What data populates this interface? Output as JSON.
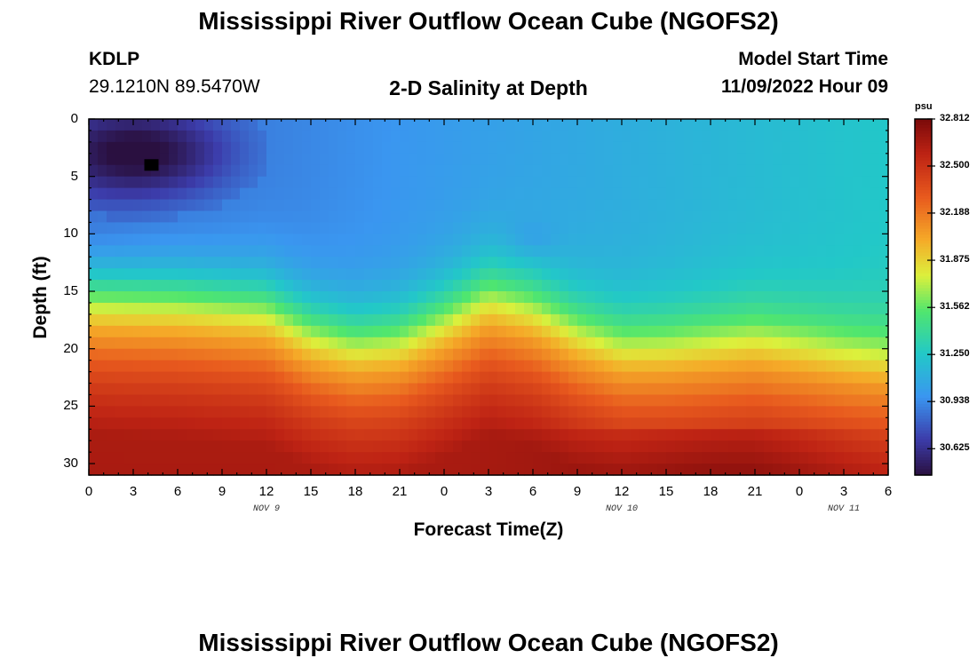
{
  "header": {
    "title": "Mississippi River Outflow Ocean Cube (NGOFS2)",
    "station_id": "KDLP",
    "station_coords": "29.1210N  89.5470W",
    "subtitle": "2-D Salinity at Depth",
    "model_start_label": "Model Start Time",
    "model_start_value": "11/09/2022 Hour 09"
  },
  "footer": {
    "title_repeat": "Mississippi River Outflow Ocean Cube (NGOFS2)"
  },
  "colors": {
    "low": "#2a1040",
    "mid_blue": "#3a9cf0",
    "cyan": "#22d2c0",
    "yellow": "#e8f040",
    "orange": "#f07830",
    "high": "#7a0a0a"
  },
  "chart_data": {
    "type": "heatmap",
    "xlabel": "Forecast Time(Z)",
    "ylabel": "Depth (ft)",
    "x_tick_labels": [
      "0",
      "3",
      "6",
      "9",
      "12",
      "15",
      "18",
      "21",
      "0",
      "3",
      "6",
      "9",
      "12",
      "15",
      "18",
      "21",
      "0",
      "3",
      "6"
    ],
    "x_range": [
      0,
      54
    ],
    "y_ticks": [
      0,
      5,
      10,
      15,
      20,
      25,
      30
    ],
    "y_range": [
      0,
      31
    ],
    "y_inverted": true,
    "date_labels": [
      {
        "label": "NOV 9",
        "x": 12
      },
      {
        "label": "NOV 10",
        "x": 36
      },
      {
        "label": "NOV 11",
        "x": 51
      }
    ],
    "colorbar": {
      "unit": "psu",
      "min": 30.45,
      "max": 32.812,
      "tick_labels": [
        "32.812",
        "32.500",
        "32.188",
        "31.875",
        "31.562",
        "31.250",
        "30.938",
        "30.625"
      ],
      "tick_values": [
        32.812,
        32.5,
        32.188,
        31.875,
        31.562,
        31.25,
        30.938,
        30.625
      ]
    },
    "halocline_depth_ft": [
      {
        "x": 0,
        "depth": 15.5
      },
      {
        "x": 6,
        "depth": 15.8
      },
      {
        "x": 12,
        "depth": 16.5
      },
      {
        "x": 15,
        "depth": 18.5
      },
      {
        "x": 18,
        "depth": 19.5
      },
      {
        "x": 21,
        "depth": 19.2
      },
      {
        "x": 24,
        "depth": 17.5
      },
      {
        "x": 27,
        "depth": 15.5
      },
      {
        "x": 30,
        "depth": 16.5
      },
      {
        "x": 33,
        "depth": 18.5
      },
      {
        "x": 36,
        "depth": 19.8
      },
      {
        "x": 39,
        "depth": 19.8
      },
      {
        "x": 42,
        "depth": 19.5
      },
      {
        "x": 45,
        "depth": 19.2
      },
      {
        "x": 48,
        "depth": 19.8
      },
      {
        "x": 51,
        "depth": 20.5
      },
      {
        "x": 54,
        "depth": 21.0
      }
    ],
    "surface_salinity_psu": {
      "x0": 30.8,
      "x54": 31.25
    },
    "fresh_pocket": {
      "x_range": [
        0,
        10
      ],
      "depth_range": [
        0,
        6
      ],
      "min_psu": 30.45
    },
    "bottom_salinity_psu": {
      "min": 32.3,
      "max": 32.812
    }
  }
}
